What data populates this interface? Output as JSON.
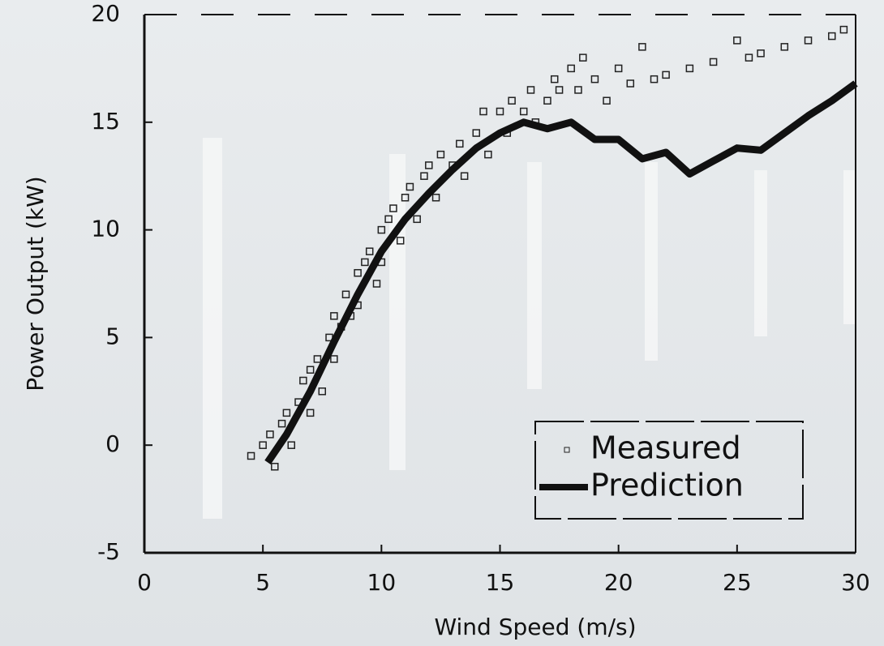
{
  "chart_data": {
    "type": "scatter",
    "x_label": "Wind Speed (m/s)",
    "y_label": "Power Output (kW)",
    "xlim": [
      0,
      30
    ],
    "ylim": [
      -5,
      20
    ],
    "xticks": [
      0,
      5,
      10,
      15,
      20,
      25,
      30
    ],
    "yticks": [
      -5,
      0,
      5,
      10,
      15,
      20
    ],
    "legend": "lower right",
    "series": [
      {
        "name": "Measured",
        "type": "scatter",
        "color": "#222222",
        "x": [
          4.5,
          5,
          5.3,
          5.5,
          5.8,
          6,
          6.2,
          6.5,
          6.7,
          7,
          7,
          7.3,
          7.5,
          7.8,
          8,
          8,
          8.3,
          8.5,
          8.7,
          9,
          9,
          9.3,
          9.5,
          9.8,
          10,
          10,
          10.3,
          10.5,
          10.8,
          11,
          11.2,
          11.5,
          11.8,
          12,
          12.3,
          12.5,
          13,
          13.3,
          13.5,
          14,
          14.3,
          14.5,
          15,
          15.3,
          15.5,
          16,
          16.3,
          16.5,
          17,
          17.3,
          17.5,
          18,
          18.3,
          18.5,
          19,
          19.5,
          20,
          20.5,
          21,
          21.5,
          22,
          23,
          24,
          25,
          25.5,
          26,
          27,
          28,
          29,
          29.5
        ],
        "values": [
          -0.5,
          0,
          0.5,
          -1,
          1,
          1.5,
          0,
          2,
          3,
          3.5,
          1.5,
          4,
          2.5,
          5,
          4,
          6,
          5.5,
          7,
          6,
          8,
          6.5,
          8.5,
          9,
          7.5,
          10,
          8.5,
          10.5,
          11,
          9.5,
          11.5,
          12,
          10.5,
          12.5,
          13,
          11.5,
          13.5,
          13,
          14,
          12.5,
          14.5,
          15.5,
          13.5,
          15.5,
          14.5,
          16,
          15.5,
          16.5,
          15,
          16,
          17,
          16.5,
          17.5,
          16.5,
          18,
          17,
          16,
          17.5,
          16.8,
          18.5,
          17,
          17.2,
          17.5,
          17.8,
          18.8,
          18,
          18.2,
          18.5,
          18.8,
          19,
          19.3
        ]
      },
      {
        "name": "Prediction",
        "type": "line",
        "color": "#111111",
        "x": [
          5.2,
          6,
          7,
          8,
          9,
          10,
          11,
          12,
          13,
          14,
          15,
          16,
          17,
          18,
          19,
          20,
          21,
          22,
          23,
          24,
          25,
          26,
          27,
          28,
          29,
          30
        ],
        "values": [
          -0.8,
          0.5,
          2.5,
          4.8,
          7,
          9,
          10.5,
          11.7,
          12.8,
          13.8,
          14.5,
          15,
          14.7,
          15,
          14.2,
          14.2,
          13.3,
          13.6,
          12.6,
          13.2,
          13.8,
          13.7,
          14.5,
          15.3,
          16,
          16.8
        ]
      }
    ]
  }
}
